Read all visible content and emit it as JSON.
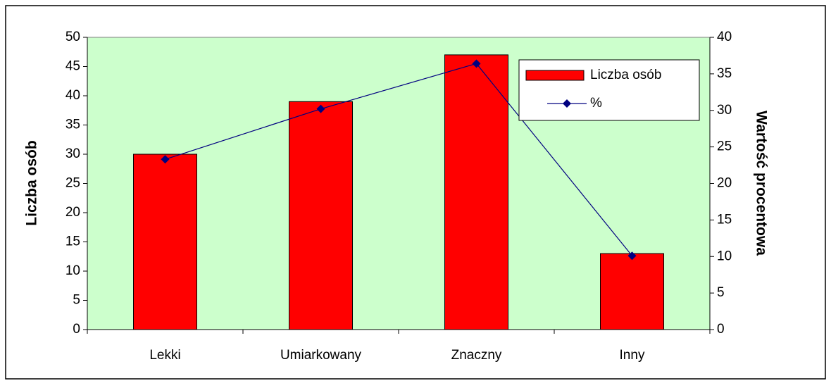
{
  "chart_data": {
    "type": "bar",
    "categories": [
      "Lekki",
      "Umiarkowany",
      "Znaczny",
      "Inny"
    ],
    "series": [
      {
        "name": "Liczba osób",
        "type": "bar",
        "color": "#ff0000",
        "values": [
          30,
          39,
          47,
          13
        ]
      },
      {
        "name": "%",
        "type": "line",
        "axis": "y2",
        "color": "#000080",
        "values": [
          23.3,
          30.2,
          36.4,
          10.1
        ]
      }
    ],
    "ylabel": "Liczba osób",
    "y2label": "Wartość procentowa",
    "ylim": [
      0,
      50
    ],
    "yticks": [
      0,
      5,
      10,
      15,
      20,
      25,
      30,
      35,
      40,
      45,
      50
    ],
    "y2lim": [
      0,
      40
    ],
    "y2ticks": [
      0,
      5,
      10,
      15,
      20,
      25,
      30,
      35,
      40
    ],
    "plot_background": "#ccffcc",
    "legend": "upper right"
  }
}
